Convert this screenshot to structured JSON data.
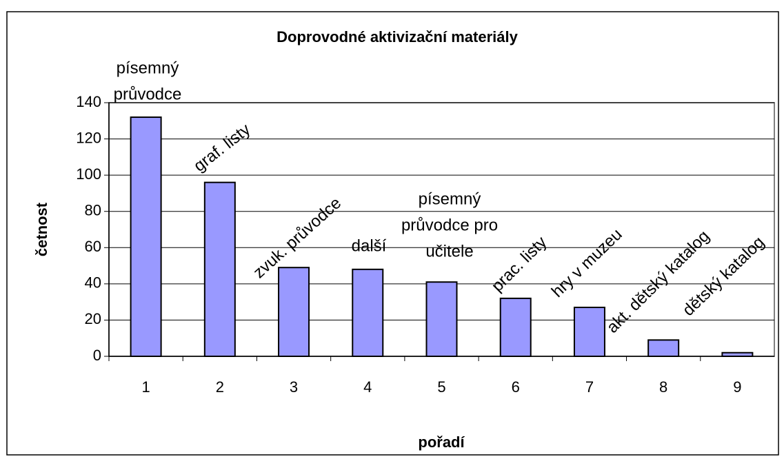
{
  "chart_data": {
    "type": "bar",
    "title": "Doprovodné aktivizační materiály",
    "x_label": "pořadí",
    "y_label": "četnost",
    "categories": [
      "1",
      "2",
      "3",
      "4",
      "5",
      "6",
      "7",
      "8",
      "9"
    ],
    "values": [
      132,
      96,
      49,
      48,
      41,
      32,
      27,
      9,
      2
    ],
    "annotations": [
      [
        "písemný",
        "průvodce"
      ],
      [
        "graf. listy"
      ],
      [
        "zvuk. průvodce"
      ],
      [
        "další"
      ],
      [
        "písemný",
        "průvodce pro",
        "učitele"
      ],
      [
        "prac. listy"
      ],
      [
        "hry v muzeu"
      ],
      [
        "akt. dětský katalog"
      ],
      [
        "dětský katalog"
      ]
    ],
    "color": "#9999ff",
    "ylim": [
      0,
      140
    ],
    "yticks": [
      0,
      20,
      40,
      60,
      80,
      100,
      120,
      140
    ],
    "grid": true
  }
}
